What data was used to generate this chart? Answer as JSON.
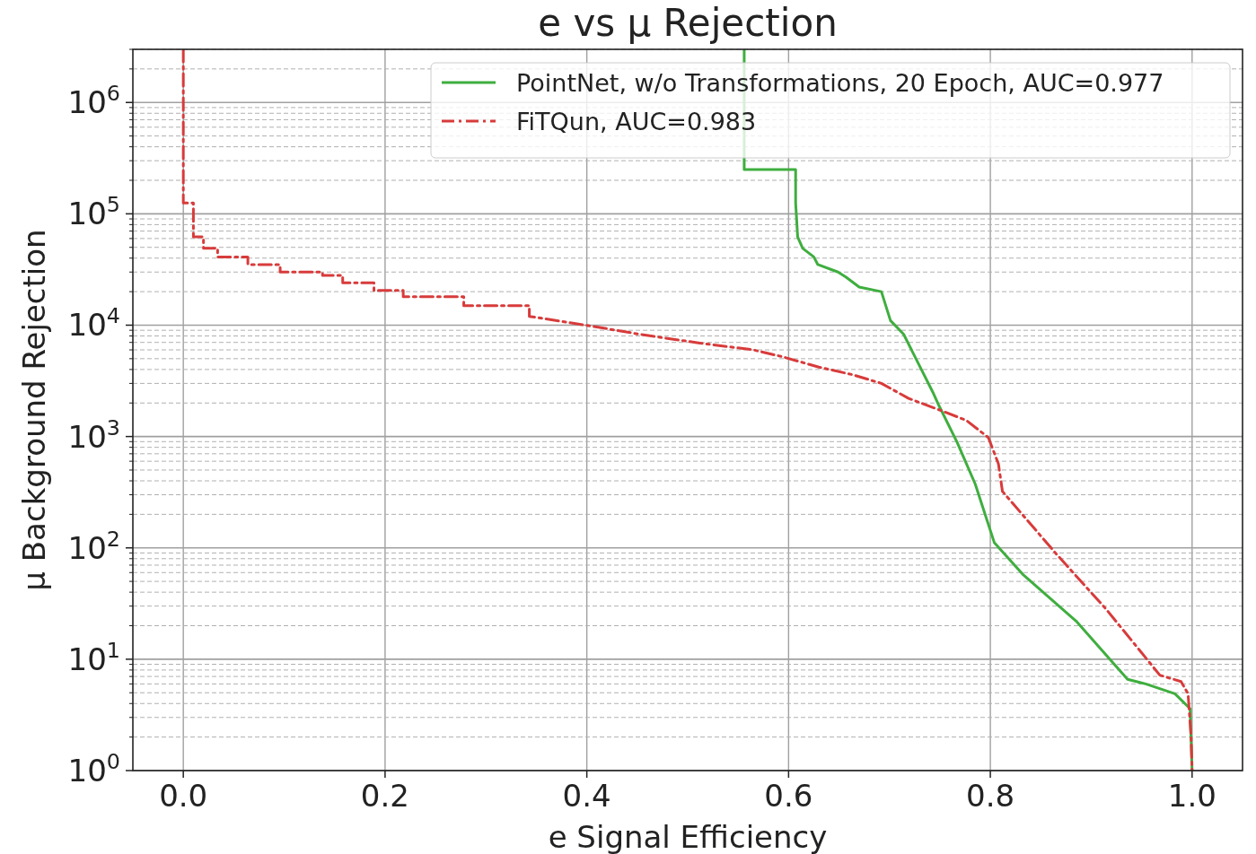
{
  "chart_data": {
    "type": "line",
    "title": "e vs μ Rejection",
    "xlabel": "e Signal Efficiency",
    "ylabel": "μ Background Rejection",
    "log": "y",
    "grid": true,
    "legend": "top right",
    "xlim": [
      -0.05,
      1.05
    ],
    "ylim": [
      1,
      3000000
    ],
    "xticks": [
      {
        "value": 0,
        "label": "0.0"
      },
      {
        "value": 0.2,
        "label": "0.2"
      },
      {
        "value": 0.4,
        "label": "0.4"
      },
      {
        "value": 0.6,
        "label": "0.6"
      },
      {
        "value": 0.8,
        "label": "0.8"
      },
      {
        "value": 1,
        "label": "1.0"
      }
    ],
    "yticks": [
      {
        "value": 1,
        "label": "10$^{0}$"
      },
      {
        "value": 2,
        "label": null
      },
      {
        "value": 3,
        "label": null
      },
      {
        "value": 4,
        "label": null
      },
      {
        "value": 5,
        "label": null
      },
      {
        "value": 6,
        "label": null
      },
      {
        "value": 7,
        "label": null
      },
      {
        "value": 8,
        "label": null
      },
      {
        "value": 9,
        "label": null
      },
      {
        "value": 10,
        "label": "10$^{1}$"
      },
      {
        "value": 20,
        "label": null
      },
      {
        "value": 30,
        "label": null
      },
      {
        "value": 40,
        "label": null
      },
      {
        "value": 50,
        "label": null
      },
      {
        "value": 60,
        "label": null
      },
      {
        "value": 70,
        "label": null
      },
      {
        "value": 80,
        "label": null
      },
      {
        "value": 90,
        "label": null
      },
      {
        "value": 100,
        "label": "10$^{2}$"
      },
      {
        "value": 200,
        "label": null
      },
      {
        "value": 300,
        "label": null
      },
      {
        "value": 400,
        "label": null
      },
      {
        "value": 500,
        "label": null
      },
      {
        "value": 600,
        "label": null
      },
      {
        "value": 700,
        "label": null
      },
      {
        "value": 800,
        "label": null
      },
      {
        "value": 900,
        "label": null
      },
      {
        "value": 1000,
        "label": "10$^{3}$"
      },
      {
        "value": 2000,
        "label": null
      },
      {
        "value": 3000,
        "label": null
      },
      {
        "value": 4000,
        "label": null
      },
      {
        "value": 5000,
        "label": null
      },
      {
        "value": 6000,
        "label": null
      },
      {
        "value": 7000,
        "label": null
      },
      {
        "value": 8000,
        "label": null
      },
      {
        "value": 9000,
        "label": null
      },
      {
        "value": 10000,
        "label": "10$^{4}$"
      },
      {
        "value": 20000,
        "label": null
      },
      {
        "value": 30000,
        "label": null
      },
      {
        "value": 40000,
        "label": null
      },
      {
        "value": 50000,
        "label": null
      },
      {
        "value": 60000,
        "label": null
      },
      {
        "value": 70000,
        "label": null
      },
      {
        "value": 80000,
        "label": null
      },
      {
        "value": 90000,
        "label": null
      },
      {
        "value": 100000,
        "label": "10$^{5}$"
      },
      {
        "value": 200000,
        "label": null
      },
      {
        "value": 300000,
        "label": null
      },
      {
        "value": 400000,
        "label": null
      },
      {
        "value": 500000,
        "label": null
      },
      {
        "value": 600000,
        "label": null
      },
      {
        "value": 700000,
        "label": null
      },
      {
        "value": 800000,
        "label": null
      },
      {
        "value": 900000,
        "label": null
      },
      {
        "value": 1000000,
        "label": "10$^{6}$"
      },
      {
        "value": 2000000,
        "label": null
      },
      {
        "value": 3000000,
        "label": null
      }
    ],
    "series": [
      {
        "name": "PointNet, w/o Transformations, 20 Epoch, AUC=0.977",
        "color": "#3fae3f",
        "line_style": "solid",
        "x": [
          0.556,
          0.556,
          0.607,
          0.607,
          0.609,
          0.614,
          0.625,
          0.629,
          0.649,
          0.657,
          0.67,
          0.692,
          0.701,
          0.714,
          0.743,
          0.749,
          0.767,
          0.785,
          0.804,
          0.832,
          0.885,
          0.936,
          0.954,
          0.983,
          0.998,
          1.0
        ],
        "values": [
          3000000,
          250000,
          250000,
          125000,
          62000,
          49000,
          41000,
          35000,
          30000,
          27000,
          22000,
          20000,
          11000,
          8300,
          2500,
          1900,
          890,
          375,
          111,
          58,
          22,
          6.6,
          6.0,
          4.9,
          3.6,
          1
        ]
      },
      {
        "name": "FiTQun, AUC=0.983",
        "color": "#d83b3b",
        "line_style": "dashed",
        "x": [
          0,
          0,
          0.01,
          0.01,
          0.02,
          0.02,
          0.034,
          0.034,
          0.064,
          0.064,
          0.096,
          0.096,
          0.138,
          0.138,
          0.158,
          0.158,
          0.189,
          0.189,
          0.218,
          0.218,
          0.278,
          0.278,
          0.343,
          0.343,
          0.399,
          0.452,
          0.512,
          0.565,
          0.594,
          0.63,
          0.663,
          0.692,
          0.719,
          0.749,
          0.776,
          0.798,
          0.808,
          0.812,
          0.865,
          0.915,
          0.968,
          0.989,
          0.996,
          0.999,
          1.0
        ],
        "values": [
          3000000,
          125000,
          125000,
          62000,
          62000,
          49000,
          49000,
          41000,
          41000,
          35000,
          35000,
          30000,
          30000,
          28000,
          28000,
          24000,
          24000,
          20500,
          20500,
          18000,
          18000,
          15000,
          15000,
          12000,
          10000,
          8300,
          6900,
          6000,
          5200,
          4200,
          3600,
          3000,
          2200,
          1740,
          1400,
          980,
          570,
          322,
          89,
          28,
          7.2,
          6.3,
          4.9,
          2,
          1
        ]
      }
    ]
  }
}
